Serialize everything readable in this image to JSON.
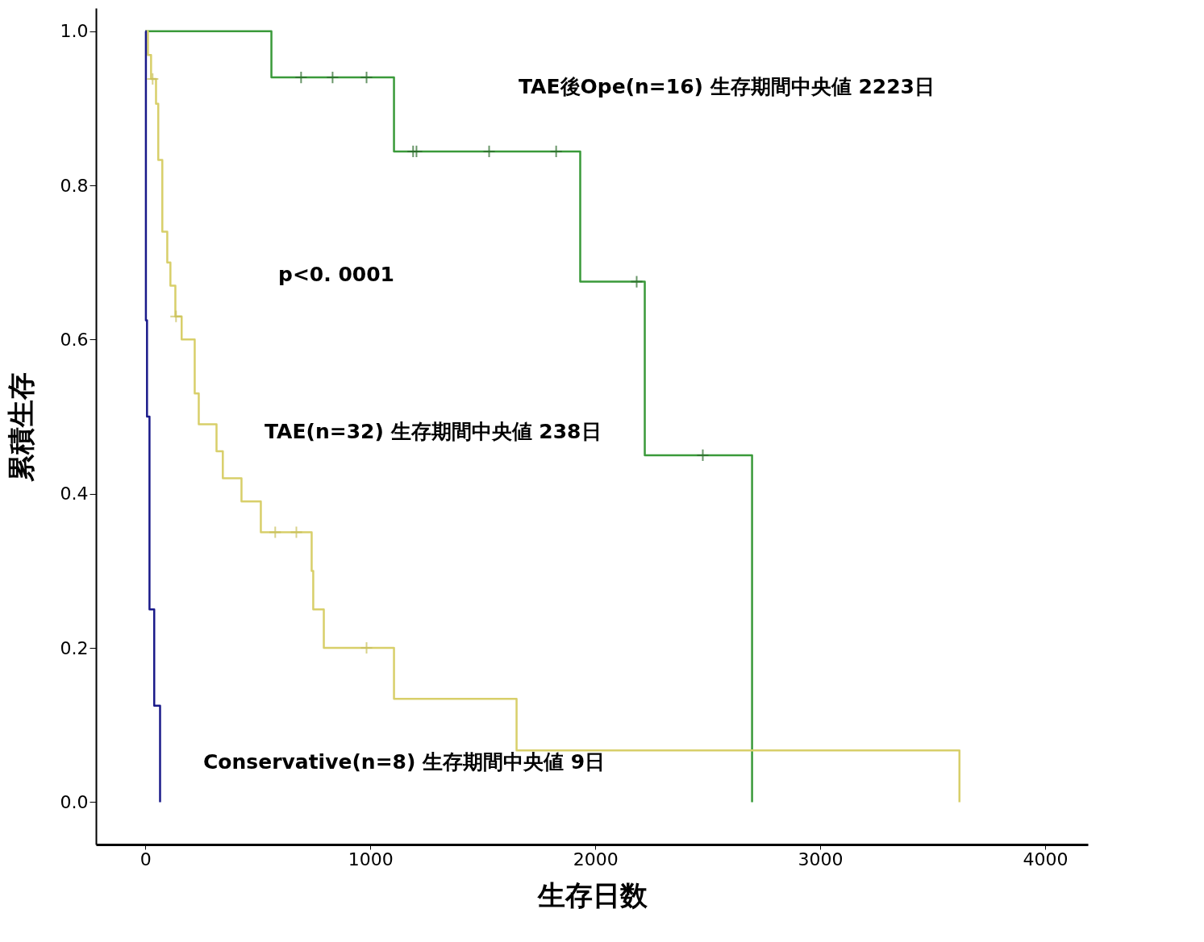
{
  "chart_data": {
    "type": "step",
    "xlabel": "生存日数",
    "ylabel": "累積生存",
    "xlim": [
      -220,
      4190
    ],
    "ylim": [
      -0.055,
      1.03
    ],
    "xticks": [
      0,
      1000,
      2000,
      3000,
      4000
    ],
    "yticks": [
      {
        "value": 0,
        "label": "0.0"
      },
      {
        "value": 0.2,
        "label": "0.2"
      },
      {
        "value": 0.4,
        "label": "0.4"
      },
      {
        "value": 0.6,
        "label": "0.6"
      },
      {
        "value": 0.8,
        "label": "0.8"
      },
      {
        "value": 1,
        "label": "1.0"
      }
    ],
    "series": [
      {
        "color": "#3a9a3a",
        "x": [
          0,
          560,
          1105,
          1933,
          2220,
          2697
        ],
        "values": [
          1,
          0.94,
          0.844,
          0.675,
          0.45,
          0
        ]
      },
      {
        "color": "#d8cf6a",
        "x": [
          0,
          11,
          25,
          47,
          57,
          75,
          97,
          111,
          133,
          161,
          219,
          237,
          316,
          344,
          427,
          513,
          739,
          746,
          793,
          1105,
          1650,
          3619
        ],
        "values": [
          1,
          0.969,
          0.938,
          0.906,
          0.833,
          0.74,
          0.7,
          0.67,
          0.63,
          0.6,
          0.53,
          0.49,
          0.455,
          0.42,
          0.39,
          0.35,
          0.3,
          0.25,
          0.2,
          0.134,
          0.067,
          0
        ]
      },
      {
        "color": "#1a1a8a",
        "x": [
          0,
          2,
          7,
          18,
          39,
          65
        ],
        "values": [
          1,
          0.625,
          0.5,
          0.25,
          0.125,
          0
        ]
      },
      {
        "type": "scatter",
        "marker": "cross",
        "color": "#2a6a2a",
        "x": [
          692,
          832,
          983,
          1190,
          1205,
          1528,
          1826,
          2184,
          2478
        ],
        "values": [
          0.94,
          0.94,
          0.94,
          0.844,
          0.844,
          0.844,
          0.844,
          0.675,
          0.45
        ]
      },
      {
        "type": "scatter",
        "marker": "cross",
        "color": "#c8bf5a",
        "x": [
          32,
          136,
          577,
          671,
          983
        ],
        "values": [
          0.938,
          0.63,
          0.35,
          0.35,
          0.2
        ]
      }
    ],
    "annotations": [
      "TAE後Ope(n=16)  生存期間中央値   2223日",
      "p<0. 0001",
      "TAE(n=32)  生存期間中央値   238日",
      "Conservative(n=8)   生存期間中央値   9日"
    ]
  }
}
